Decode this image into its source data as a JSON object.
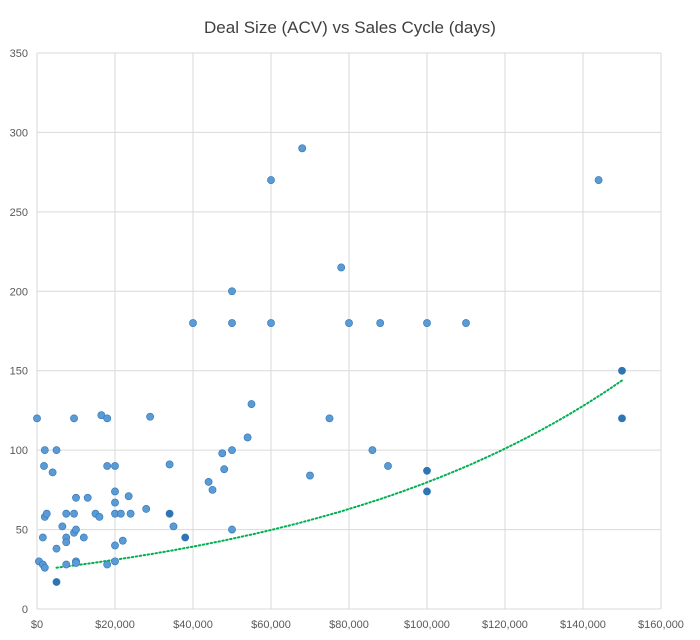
{
  "chart_data": {
    "type": "scatter",
    "title": "Deal Size (ACV) vs Sales Cycle (days)",
    "xlabel": "",
    "ylabel": "",
    "xlim": [
      0,
      160000
    ],
    "ylim": [
      0,
      350
    ],
    "x_ticks": [
      0,
      20000,
      40000,
      60000,
      80000,
      100000,
      120000,
      140000,
      160000
    ],
    "x_tick_labels": [
      "$0",
      "$20,000",
      "$40,000",
      "$60,000",
      "$80,000",
      "$100,000",
      "$120,000",
      "$140,000",
      "$160,000"
    ],
    "y_ticks": [
      0,
      50,
      100,
      150,
      200,
      250,
      300,
      350
    ],
    "y_tick_labels": [
      "0",
      "50",
      "100",
      "150",
      "200",
      "250",
      "300",
      "350"
    ],
    "grid": true,
    "legend": "none",
    "colors": {
      "points": "#5b9bd5",
      "points_dark": "#2e75b6",
      "trendline": "#00b050",
      "grid": "#d9d9d9"
    },
    "series": [
      {
        "points": [
          [
            0,
            120
          ],
          [
            500,
            30
          ],
          [
            1500,
            28
          ],
          [
            1500,
            45
          ],
          [
            1800,
            90
          ],
          [
            2000,
            100
          ],
          [
            2000,
            26
          ],
          [
            2000,
            58
          ],
          [
            2500,
            60
          ],
          [
            4000,
            86
          ],
          [
            5000,
            100
          ],
          [
            5000,
            38
          ],
          [
            6500,
            52
          ],
          [
            7500,
            45
          ],
          [
            7500,
            60
          ],
          [
            7500,
            42
          ],
          [
            7500,
            28
          ],
          [
            9500,
            120
          ],
          [
            9500,
            48
          ],
          [
            9500,
            60
          ],
          [
            10000,
            70
          ],
          [
            10000,
            50
          ],
          [
            10000,
            30
          ],
          [
            10000,
            29
          ],
          [
            12000,
            45
          ],
          [
            13000,
            70
          ],
          [
            15000,
            60
          ],
          [
            16000,
            58
          ],
          [
            16500,
            122
          ],
          [
            18000,
            120
          ],
          [
            18000,
            90
          ],
          [
            18000,
            28
          ],
          [
            20000,
            90
          ],
          [
            20000,
            74
          ],
          [
            20000,
            67
          ],
          [
            20000,
            60
          ],
          [
            20000,
            40
          ],
          [
            20000,
            30
          ],
          [
            21500,
            60
          ],
          [
            22000,
            43
          ],
          [
            23500,
            71
          ],
          [
            24000,
            60
          ],
          [
            28000,
            63
          ],
          [
            29000,
            121
          ],
          [
            34000,
            91
          ],
          [
            35000,
            52
          ],
          [
            44000,
            80
          ],
          [
            45000,
            75
          ],
          [
            47500,
            98
          ],
          [
            48000,
            88
          ],
          [
            50000,
            100
          ],
          [
            50000,
            50
          ],
          [
            50000,
            200
          ],
          [
            50000,
            180
          ],
          [
            54000,
            108
          ],
          [
            55000,
            129
          ],
          [
            60000,
            270
          ],
          [
            60000,
            180
          ],
          [
            68000,
            290
          ],
          [
            70000,
            84
          ],
          [
            75000,
            120
          ],
          [
            78000,
            215
          ],
          [
            80000,
            180
          ],
          [
            86000,
            100
          ],
          [
            88000,
            180
          ],
          [
            90000,
            90
          ],
          [
            100000,
            180
          ],
          [
            110000,
            180
          ],
          [
            40000,
            180
          ],
          [
            144000,
            270
          ]
        ]
      },
      {
        "points": [
          [
            5000,
            17
          ],
          [
            34000,
            60
          ],
          [
            38000,
            45
          ],
          [
            100000,
            87
          ],
          [
            100000,
            74
          ],
          [
            150000,
            150
          ],
          [
            150000,
            120
          ]
        ]
      }
    ],
    "trendline": {
      "type": "exponential",
      "style": "dotted",
      "a": 24.5,
      "b": 1.18e-05,
      "x_range": [
        5000,
        150000
      ]
    }
  }
}
